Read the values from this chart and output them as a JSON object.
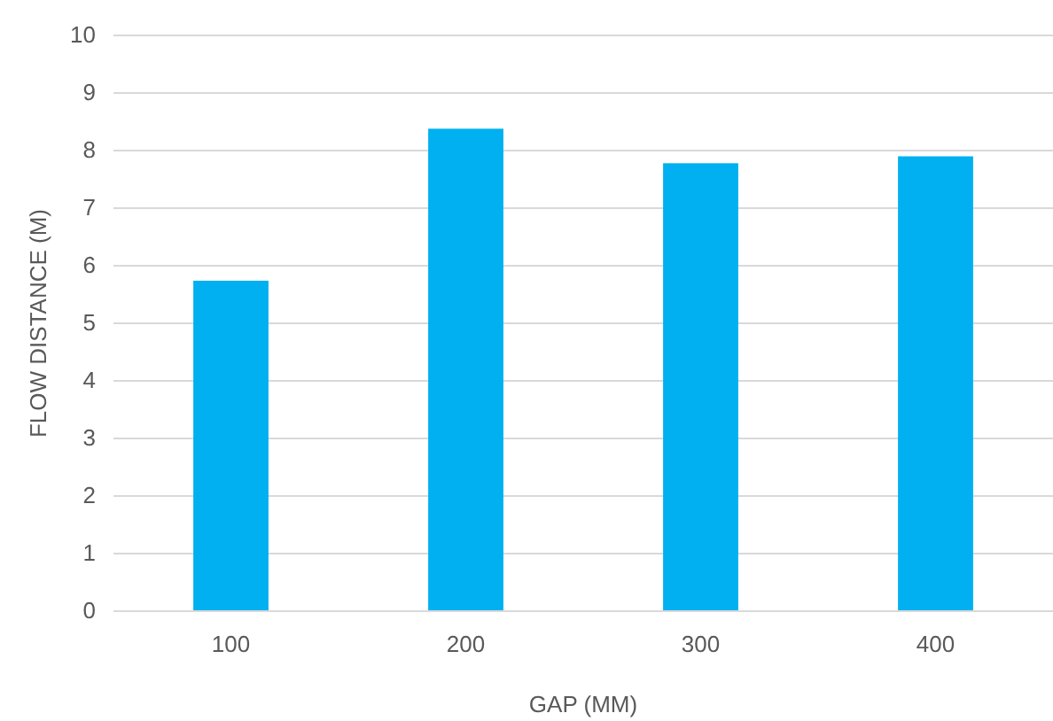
{
  "chart_data": {
    "type": "bar",
    "xlabel": "GAP (MM)",
    "ylabel": "FLOW DISTANCE (M)",
    "categories": [
      "100",
      "200",
      "300",
      "400"
    ],
    "values": [
      5.74,
      8.38,
      7.78,
      7.9
    ],
    "color": "#00b0f0",
    "ylim": [
      0,
      10
    ],
    "yticks": [
      0,
      1,
      2,
      3,
      4,
      5,
      6,
      7,
      8,
      9,
      10
    ],
    "grid": "y"
  }
}
